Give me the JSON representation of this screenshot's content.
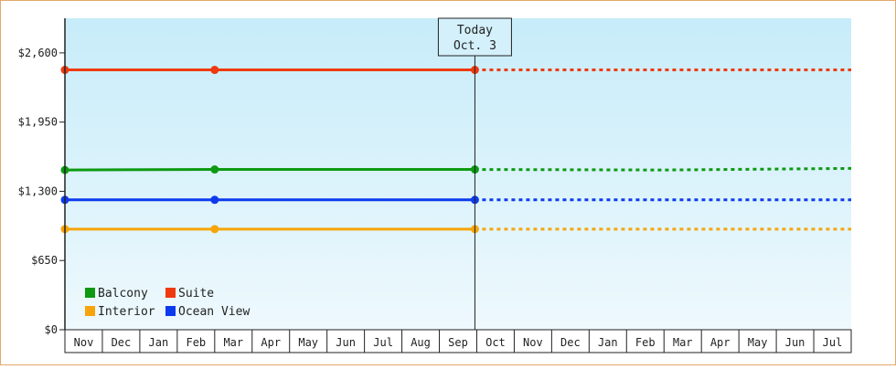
{
  "chart_data": {
    "type": "line",
    "y_axis": {
      "min": 0,
      "max": 2925,
      "ticks": [
        {
          "value": 0,
          "label": "$0"
        },
        {
          "value": 650,
          "label": "$650"
        },
        {
          "value": 1300,
          "label": "$1,300"
        },
        {
          "value": 1950,
          "label": "$1,950"
        },
        {
          "value": 2600,
          "label": "$2,600"
        }
      ]
    },
    "months": [
      "Nov",
      "Dec",
      "Jan",
      "Feb",
      "Mar",
      "Apr",
      "May",
      "Jun",
      "Jul",
      "Aug",
      "Sep",
      "Oct",
      "Nov",
      "Dec",
      "Jan",
      "Feb",
      "Mar",
      "Apr",
      "May",
      "Jun",
      "Jul"
    ],
    "today_marker": {
      "line1": "Today",
      "line2": "Oct. 3",
      "month_index": 10.95
    },
    "series": [
      {
        "name": "Suite",
        "color": "#ee3a0e",
        "points": [
          {
            "m": 0,
            "v": 2440
          },
          {
            "m": 4,
            "v": 2440
          },
          {
            "m": 10.95,
            "v": 2440
          }
        ],
        "projection": [
          {
            "m": 10.95,
            "v": 2440
          },
          {
            "m": 21,
            "v": 2440
          }
        ]
      },
      {
        "name": "Balcony",
        "color": "#0d9a12",
        "points": [
          {
            "m": 0,
            "v": 1500
          },
          {
            "m": 4,
            "v": 1505
          },
          {
            "m": 10.95,
            "v": 1505
          }
        ],
        "projection": [
          {
            "m": 10.95,
            "v": 1505
          },
          {
            "m": 16,
            "v": 1500
          },
          {
            "m": 21,
            "v": 1515
          }
        ]
      },
      {
        "name": "Ocean View",
        "color": "#0e3aee",
        "points": [
          {
            "m": 0,
            "v": 1220
          },
          {
            "m": 4,
            "v": 1220
          },
          {
            "m": 10.95,
            "v": 1220
          }
        ],
        "projection": [
          {
            "m": 10.95,
            "v": 1220
          },
          {
            "m": 21,
            "v": 1220
          }
        ]
      },
      {
        "name": "Interior",
        "color": "#f6a40a",
        "points": [
          {
            "m": 0,
            "v": 945
          },
          {
            "m": 4,
            "v": 945
          },
          {
            "m": 10.95,
            "v": 945
          }
        ],
        "projection": [
          {
            "m": 10.95,
            "v": 945
          },
          {
            "m": 21,
            "v": 945
          }
        ]
      }
    ],
    "legend": [
      {
        "name": "Balcony",
        "color": "#0d9a12"
      },
      {
        "name": "Suite",
        "color": "#ee3a0e"
      },
      {
        "name": "Interior",
        "color": "#f6a40a"
      },
      {
        "name": "Ocean View",
        "color": "#0e3aee"
      }
    ],
    "legend_position": "bottom-left",
    "grid": false
  }
}
